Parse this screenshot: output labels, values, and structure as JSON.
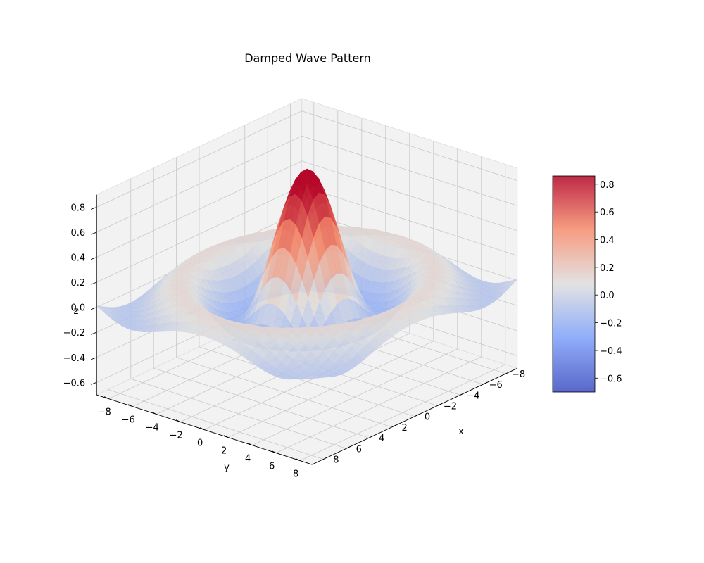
{
  "chart_data": {
    "type": "surface",
    "title": "Damped Wave Pattern",
    "function": "z = sin(r) / r, r = sqrt(x^2 + y^2)",
    "xlabel": "x",
    "ylabel": "y",
    "zlabel": "z",
    "xlim": [
      -9,
      9
    ],
    "ylim": [
      -9,
      9
    ],
    "zlim": [
      -0.7,
      0.9
    ],
    "x_ticks": [
      -8,
      -6,
      -4,
      -2,
      0,
      2,
      4,
      6,
      8
    ],
    "y_ticks": [
      -8,
      -6,
      -4,
      -2,
      0,
      2,
      4,
      6,
      8
    ],
    "z_ticks": [
      -0.6,
      -0.4,
      -0.2,
      0.0,
      0.2,
      0.4,
      0.6,
      0.8
    ],
    "z_tick_labels": [
      "−0.6",
      "−0.4",
      "−0.2",
      "0.0",
      "0.2",
      "0.4",
      "0.6",
      "0.8"
    ],
    "x_tick_labels": [
      "−8",
      "−6",
      "−4",
      "−2",
      "0",
      "2",
      "4",
      "6",
      "8"
    ],
    "y_tick_labels": [
      "−8",
      "−6",
      "−4",
      "−2",
      "0",
      "2",
      "4",
      "6",
      "8"
    ],
    "colormap": "coolwarm",
    "colorbar": {
      "range": [
        -0.7,
        0.86
      ],
      "ticks": [
        -0.6,
        -0.4,
        -0.2,
        0.0,
        0.2,
        0.4,
        0.6,
        0.8
      ],
      "tick_labels": [
        "−0.6",
        "−0.4",
        "−0.2",
        "0.0",
        "0.2",
        "0.4",
        "0.6",
        "0.8"
      ]
    },
    "grid": true
  }
}
